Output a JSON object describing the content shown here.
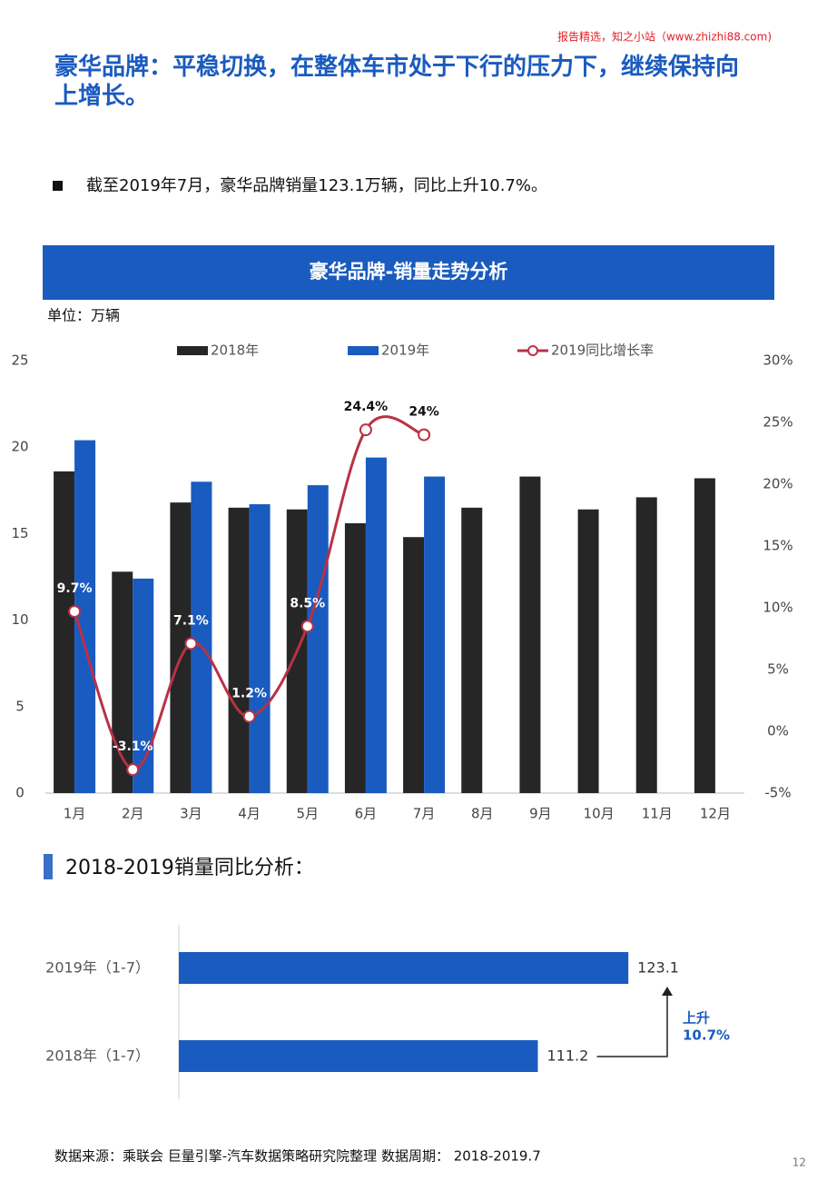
{
  "watermark": "报告精选，知之小站（www.zhizhi88.com)",
  "header": {
    "title": "豪华品牌：平稳切换，在整体车市处于下行的压力下，继续保持向上增长。"
  },
  "bullet": "截至2019年7月，豪华品牌销量123.1万辆，同比上升10.7%。",
  "section_title": "2018-2019销量同比分析：",
  "footer": "数据来源：乘联会 巨量引擎-汽车数据策略研究院整理 数据周期： 2018-2019.7",
  "page_number": "12",
  "chart_data": [
    {
      "type": "bar",
      "title": "豪华品牌-销量走势分析",
      "unit": "单位：万辆",
      "categories": [
        "1月",
        "2月",
        "3月",
        "4月",
        "5月",
        "6月",
        "7月",
        "8月",
        "9月",
        "10月",
        "11月",
        "12月"
      ],
      "series": [
        {
          "name": "2018年",
          "color": "#262626",
          "values": [
            18.6,
            12.8,
            16.8,
            16.5,
            16.4,
            15.6,
            14.8,
            16.5,
            18.3,
            16.4,
            17.1,
            18.2
          ]
        },
        {
          "name": "2019年",
          "color": "#1a5bbf",
          "values": [
            20.4,
            12.4,
            18.0,
            16.7,
            17.8,
            19.4,
            18.3,
            null,
            null,
            null,
            null,
            null
          ]
        },
        {
          "name": "2019同比增长率",
          "color": "#b83245",
          "type": "line",
          "axis": "y2",
          "values": [
            9.7,
            -3.1,
            7.1,
            1.2,
            8.5,
            24.4,
            24,
            null,
            null,
            null,
            null,
            null
          ],
          "value_labels": [
            "9.7%",
            "-3.1%",
            "7.1%",
            "1.2%",
            "8.5%",
            "24.4%",
            "24%",
            null,
            null,
            null,
            null,
            null
          ]
        }
      ],
      "ylim": [
        0,
        25
      ],
      "yticks": [
        0,
        5,
        10,
        15,
        20,
        25
      ],
      "y2lim": [
        -5,
        30
      ],
      "y2ticks": [
        {
          "value": -5,
          "label": "-5%"
        },
        {
          "value": 0,
          "label": "0%"
        },
        {
          "value": 5,
          "label": "5%"
        },
        {
          "value": 10,
          "label": "10%"
        },
        {
          "value": 15,
          "label": "15%"
        },
        {
          "value": 20,
          "label": "20%"
        },
        {
          "value": 25,
          "label": "25%"
        },
        {
          "value": 30,
          "label": "30%"
        }
      ],
      "legend": "top"
    },
    {
      "type": "hbar",
      "categories": [
        "2019年（1-7）",
        "2018年（1-7）"
      ],
      "values": [
        123.1,
        111.2
      ],
      "color": "#1a5bbf",
      "xlim": [
        64,
        130
      ],
      "annotation": [
        "上升",
        "10.7%"
      ]
    }
  ]
}
